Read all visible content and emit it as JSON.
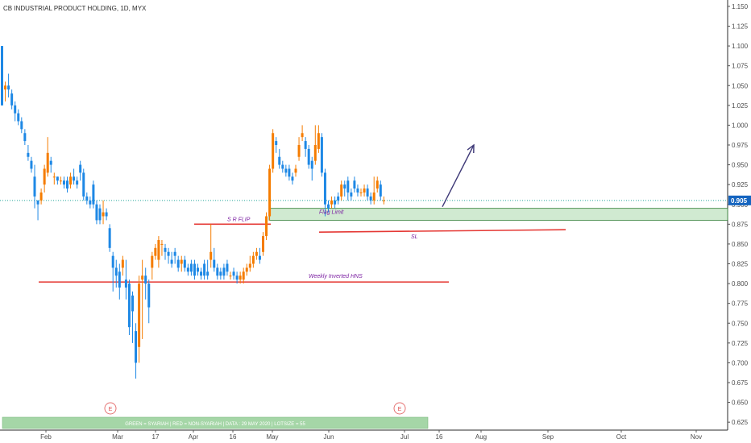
{
  "title": "CB INDUSTRIAL PRODUCT HOLDING, 1D, MYX",
  "colors": {
    "up": "#f57c00",
    "down": "#1e88e5",
    "support_line": "#e53935",
    "zone_fill": "#c8e6c9",
    "zone_stroke": "#2e7d32",
    "arrow": "#3f3a78",
    "annotation": "#7b1fa2",
    "banner_fill": "#a5d6a7",
    "price_badge": "#1565c0",
    "last_price_line": "#26a69a"
  },
  "annotations": {
    "sr_flip": "S R FLIP",
    "flag_limit": "Flag Limit",
    "sl": "SL",
    "weekly_hns": "Weekly Inverted HNS"
  },
  "banner": "GREEN = SYARIAH   |   RED = NON-SYARIAH   |  DATA : 29 MAY 2020   |   LOTSIZE = 55",
  "earnings_badges": [
    "E",
    "E"
  ],
  "current_price": "0.905",
  "chart_data": {
    "type": "candlestick",
    "title": "CB INDUSTRIAL PRODUCT HOLDING, 1D, MYX",
    "y_ticks": [
      "1.150",
      "1.125",
      "1.100",
      "1.075",
      "1.050",
      "1.025",
      "1.000",
      "0.975",
      "0.950",
      "0.925",
      "0.900",
      "0.875",
      "0.850",
      "0.825",
      "0.800",
      "0.775",
      "0.750",
      "0.725",
      "0.700",
      "0.675",
      "0.650",
      "0.625"
    ],
    "x_ticks": [
      "Feb",
      "Mar",
      "17",
      "Apr",
      "16",
      "May",
      "Jun",
      "Jul",
      "16",
      "Aug",
      "Sep",
      "Oct",
      "Nov"
    ],
    "ylim": [
      0.615,
      1.155
    ],
    "candles": [
      [
        1.1,
        1.025,
        1.1,
        1.025
      ],
      [
        1.045,
        1.05,
        1.055,
        1.03
      ],
      [
        1.05,
        1.045,
        1.065,
        1.035
      ],
      [
        1.04,
        1.025,
        1.045,
        1.02
      ],
      [
        1.025,
        1.015,
        1.03,
        1.005
      ],
      [
        1.015,
        1.005,
        1.02,
        1.0
      ],
      [
        1.005,
        0.995,
        1.01,
        0.99
      ],
      [
        0.99,
        0.98,
        0.995,
        0.975
      ],
      [
        0.965,
        0.96,
        0.975,
        0.955
      ],
      [
        0.955,
        0.945,
        0.96,
        0.94
      ],
      [
        0.935,
        0.91,
        0.95,
        0.895
      ],
      [
        0.905,
        0.9,
        0.905,
        0.88
      ],
      [
        0.905,
        0.915,
        0.92,
        0.9
      ],
      [
        0.925,
        0.945,
        0.95,
        0.915
      ],
      [
        0.94,
        0.965,
        0.985,
        0.935
      ],
      [
        0.955,
        0.95,
        0.96,
        0.94
      ],
      [
        0.935,
        0.935,
        0.94,
        0.925
      ],
      [
        0.935,
        0.93,
        0.935,
        0.925
      ],
      [
        0.93,
        0.93,
        0.935,
        0.925
      ],
      [
        0.93,
        0.925,
        0.935,
        0.92
      ],
      [
        0.93,
        0.92,
        0.935,
        0.915
      ],
      [
        0.925,
        0.935,
        0.94,
        0.92
      ],
      [
        0.935,
        0.93,
        0.945,
        0.925
      ],
      [
        0.93,
        0.925,
        0.935,
        0.92
      ],
      [
        0.95,
        0.94,
        0.955,
        0.93
      ],
      [
        0.94,
        0.91,
        0.945,
        0.905
      ],
      [
        0.91,
        0.905,
        0.915,
        0.9
      ],
      [
        0.905,
        0.9,
        0.91,
        0.895
      ],
      [
        0.925,
        0.9,
        0.93,
        0.895
      ],
      [
        0.9,
        0.88,
        0.905,
        0.875
      ],
      [
        0.895,
        0.88,
        0.9,
        0.875
      ],
      [
        0.885,
        0.89,
        0.905,
        0.875
      ],
      [
        0.89,
        0.885,
        0.895,
        0.88
      ],
      [
        0.87,
        0.845,
        0.875,
        0.84
      ],
      [
        0.835,
        0.82,
        0.84,
        0.79
      ],
      [
        0.82,
        0.81,
        0.83,
        0.795
      ],
      [
        0.815,
        0.795,
        0.825,
        0.78
      ],
      [
        0.82,
        0.83,
        0.835,
        0.81
      ],
      [
        0.805,
        0.795,
        0.83,
        0.78
      ],
      [
        0.8,
        0.745,
        0.805,
        0.735
      ],
      [
        0.785,
        0.765,
        0.79,
        0.725
      ],
      [
        0.74,
        0.7,
        0.75,
        0.68
      ],
      [
        0.72,
        0.8,
        0.81,
        0.7
      ],
      [
        0.805,
        0.81,
        0.83,
        0.73
      ],
      [
        0.81,
        0.8,
        0.82,
        0.78
      ],
      [
        0.8,
        0.77,
        0.805,
        0.75
      ],
      [
        0.82,
        0.835,
        0.84,
        0.805
      ],
      [
        0.835,
        0.845,
        0.85,
        0.83
      ],
      [
        0.83,
        0.855,
        0.86,
        0.82
      ],
      [
        0.85,
        0.85,
        0.855,
        0.835
      ],
      [
        0.845,
        0.84,
        0.85,
        0.83
      ],
      [
        0.84,
        0.835,
        0.845,
        0.825
      ],
      [
        0.83,
        0.825,
        0.84,
        0.82
      ],
      [
        0.84,
        0.835,
        0.845,
        0.825
      ],
      [
        0.83,
        0.82,
        0.835,
        0.815
      ],
      [
        0.825,
        0.83,
        0.835,
        0.815
      ],
      [
        0.83,
        0.82,
        0.835,
        0.815
      ],
      [
        0.82,
        0.815,
        0.825,
        0.81
      ],
      [
        0.825,
        0.815,
        0.83,
        0.81
      ],
      [
        0.825,
        0.81,
        0.83,
        0.805
      ],
      [
        0.82,
        0.815,
        0.825,
        0.81
      ],
      [
        0.815,
        0.81,
        0.82,
        0.805
      ],
      [
        0.825,
        0.81,
        0.83,
        0.805
      ],
      [
        0.815,
        0.81,
        0.83,
        0.805
      ],
      [
        0.83,
        0.84,
        0.875,
        0.82
      ],
      [
        0.83,
        0.82,
        0.845,
        0.815
      ],
      [
        0.82,
        0.81,
        0.825,
        0.805
      ],
      [
        0.815,
        0.81,
        0.82,
        0.805
      ],
      [
        0.82,
        0.81,
        0.825,
        0.805
      ],
      [
        0.825,
        0.815,
        0.83,
        0.81
      ],
      [
        0.81,
        0.81,
        0.815,
        0.805
      ],
      [
        0.815,
        0.81,
        0.82,
        0.805
      ],
      [
        0.81,
        0.805,
        0.815,
        0.8
      ],
      [
        0.805,
        0.81,
        0.815,
        0.8
      ],
      [
        0.805,
        0.815,
        0.82,
        0.8
      ],
      [
        0.815,
        0.82,
        0.825,
        0.81
      ],
      [
        0.82,
        0.825,
        0.835,
        0.815
      ],
      [
        0.825,
        0.835,
        0.84,
        0.82
      ],
      [
        0.835,
        0.84,
        0.845,
        0.83
      ],
      [
        0.835,
        0.83,
        0.845,
        0.825
      ],
      [
        0.84,
        0.86,
        0.865,
        0.835
      ],
      [
        0.86,
        0.885,
        0.89,
        0.855
      ],
      [
        0.885,
        0.945,
        0.95,
        0.88
      ],
      [
        0.945,
        0.99,
        0.995,
        0.94
      ],
      [
        0.98,
        0.975,
        0.985,
        0.965
      ],
      [
        0.96,
        0.95,
        0.97,
        0.945
      ],
      [
        0.95,
        0.945,
        0.955,
        0.94
      ],
      [
        0.945,
        0.94,
        0.95,
        0.935
      ],
      [
        0.945,
        0.935,
        0.95,
        0.93
      ],
      [
        0.935,
        0.93,
        0.94,
        0.925
      ],
      [
        0.94,
        0.945,
        0.95,
        0.935
      ],
      [
        0.96,
        0.975,
        0.985,
        0.955
      ],
      [
        0.985,
        0.99,
        1.0,
        0.98
      ],
      [
        0.98,
        0.97,
        0.985,
        0.96
      ],
      [
        0.97,
        0.95,
        0.975,
        0.945
      ],
      [
        0.955,
        0.945,
        0.96,
        0.93
      ],
      [
        0.955,
        0.975,
        1.0,
        0.95
      ],
      [
        0.97,
        0.99,
        1.0,
        0.965
      ],
      [
        0.985,
        0.94,
        0.99,
        0.935
      ],
      [
        0.94,
        0.9,
        0.945,
        0.885
      ],
      [
        0.9,
        0.895,
        0.905,
        0.89
      ],
      [
        0.9,
        0.905,
        0.91,
        0.895
      ],
      [
        0.905,
        0.9,
        0.91,
        0.895
      ],
      [
        0.91,
        0.905,
        0.915,
        0.9
      ],
      [
        0.91,
        0.925,
        0.93,
        0.905
      ],
      [
        0.925,
        0.92,
        0.93,
        0.91
      ],
      [
        0.93,
        0.915,
        0.935,
        0.905
      ],
      [
        0.915,
        0.91,
        0.92,
        0.905
      ],
      [
        0.93,
        0.92,
        0.935,
        0.915
      ],
      [
        0.92,
        0.915,
        0.925,
        0.91
      ],
      [
        0.915,
        0.915,
        0.92,
        0.91
      ],
      [
        0.915,
        0.92,
        0.925,
        0.91
      ],
      [
        0.92,
        0.91,
        0.925,
        0.905
      ],
      [
        0.91,
        0.905,
        0.915,
        0.9
      ],
      [
        0.905,
        0.915,
        0.935,
        0.9
      ],
      [
        0.92,
        0.93,
        0.935,
        0.915
      ],
      [
        0.925,
        0.91,
        0.93,
        0.905
      ],
      [
        0.905,
        0.905,
        0.91,
        0.9
      ]
    ],
    "lines": {
      "sr_flip": 0.875,
      "weekly_hns": 0.802,
      "sl": 0.868,
      "flag_zone": [
        0.88,
        0.895
      ],
      "arrow_from": 0.897,
      "arrow_to": 0.975
    }
  }
}
